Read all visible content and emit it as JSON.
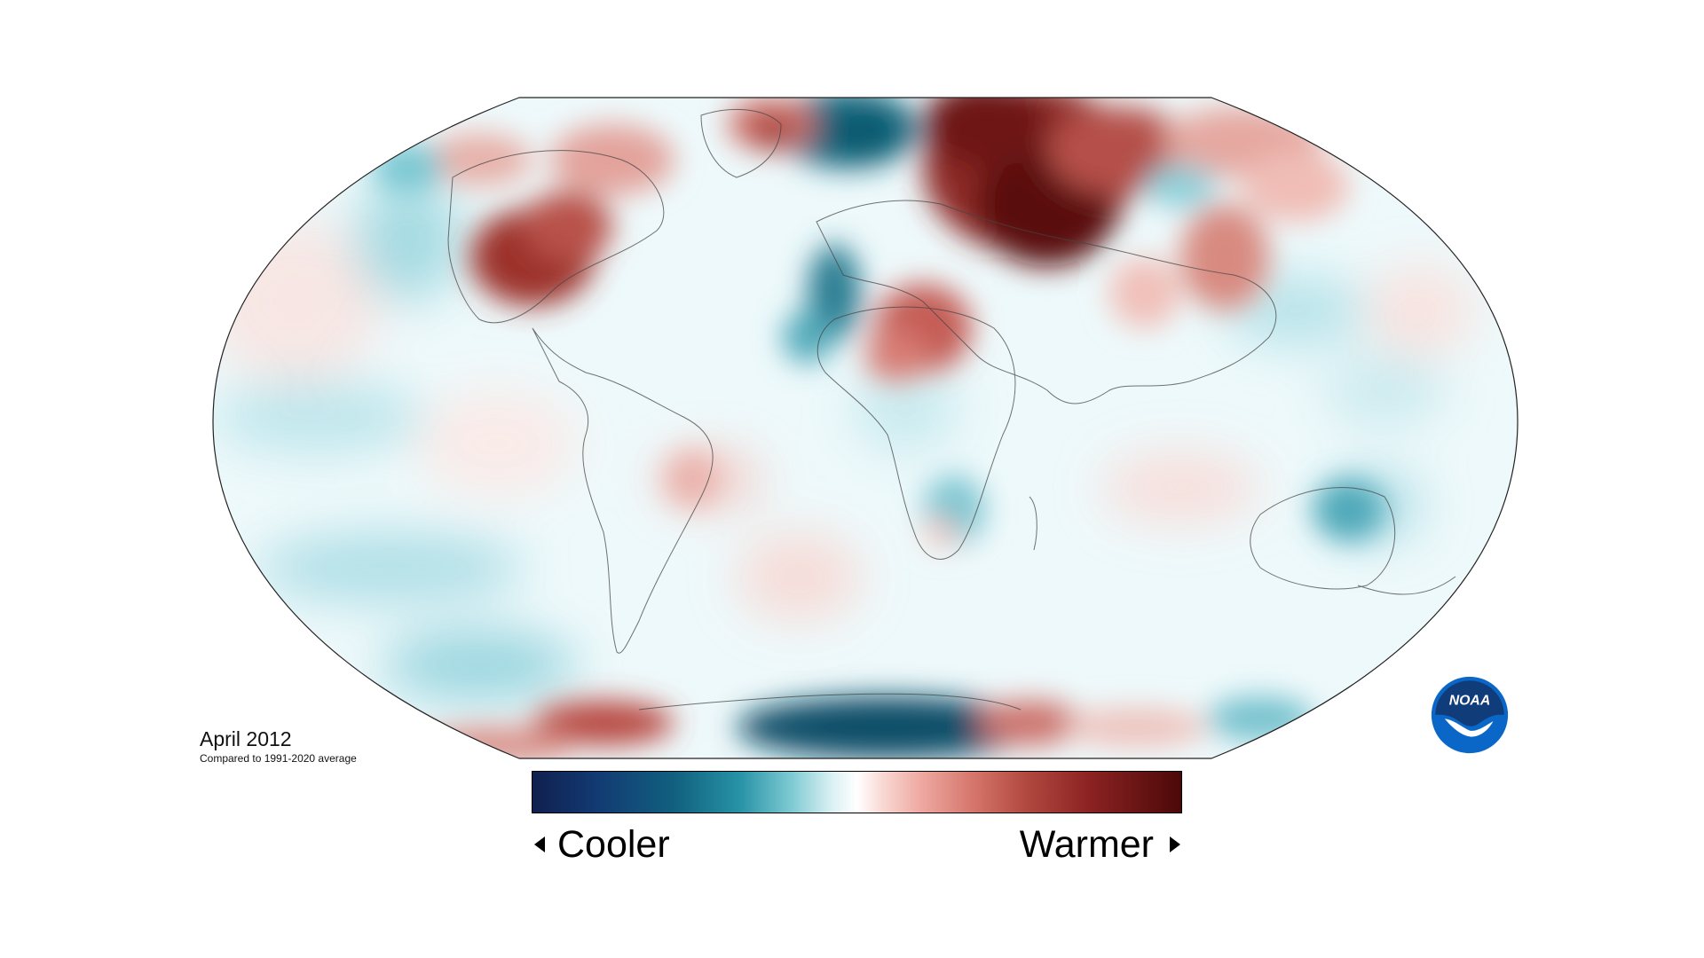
{
  "map": {
    "title": "April 2012",
    "subtitle": "Compared to 1991-2020 average",
    "projection": "Robinson",
    "colors": {
      "coolest": "#10204f",
      "cool": "#2793a6",
      "neutral": "#ffffff",
      "warm": "#d5756b",
      "warmest": "#4c0808"
    }
  },
  "legend": {
    "cooler_label": "Cooler",
    "warmer_label": "Warmer",
    "left_arrow_icon": "triangle-left-icon",
    "right_arrow_icon": "triangle-right-icon"
  },
  "logo": {
    "text": "NOAA",
    "icon": "noaa-logo-icon",
    "color": "#0a67c7"
  }
}
